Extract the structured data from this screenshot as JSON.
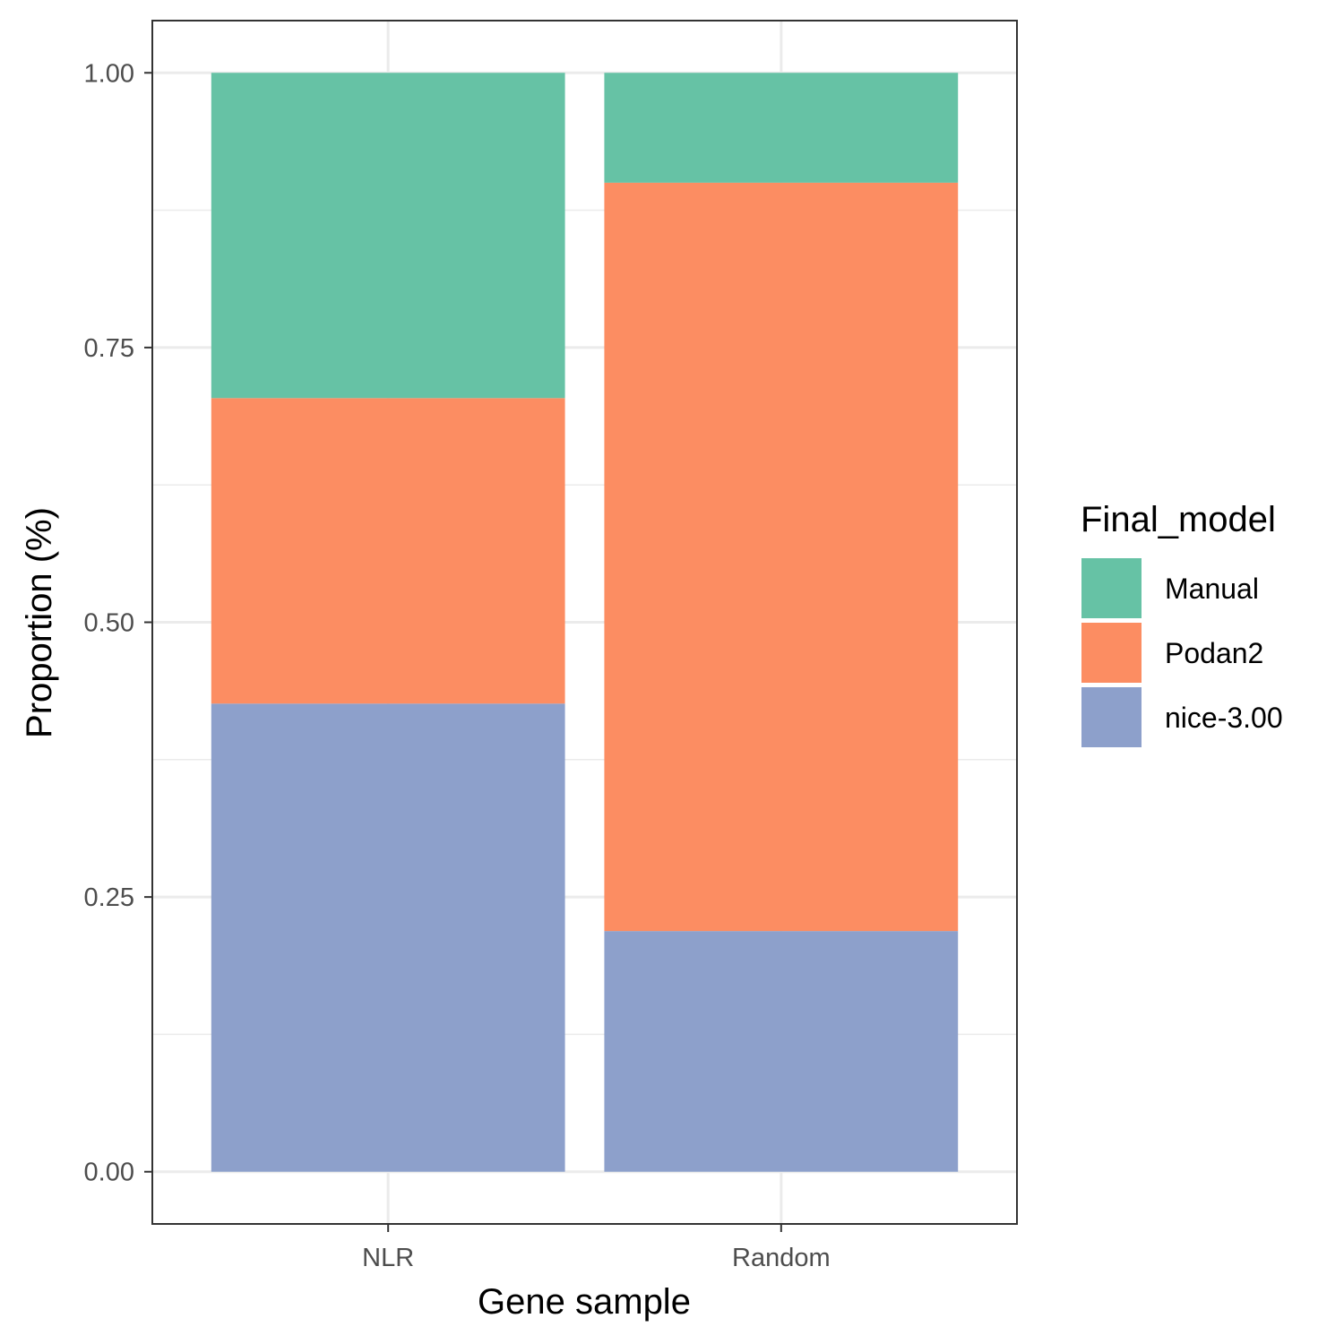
{
  "chart_data": {
    "type": "bar",
    "stacked": true,
    "categories": [
      "NLR",
      "Random"
    ],
    "series": [
      {
        "name": "nice-3.00",
        "color": "#8DA0CB",
        "values": [
          0.426,
          0.219
        ]
      },
      {
        "name": "Podan2",
        "color": "#FC8D62",
        "values": [
          0.278,
          0.681
        ]
      },
      {
        "name": "Manual",
        "color": "#66C2A5",
        "values": [
          0.296,
          0.1
        ]
      }
    ],
    "title": "",
    "xlabel": "Gene sample",
    "ylabel": "Proportion (%)",
    "ylim": [
      -0.0475,
      1.0475
    ],
    "yticks": [
      0,
      0.25,
      0.5,
      0.75,
      1.0
    ],
    "ytick_labels": [
      "0.00",
      "0.25",
      "0.50",
      "0.75",
      "1.00"
    ],
    "grid": true,
    "legend": {
      "title": "Final_model",
      "position": "right",
      "items": [
        "Manual",
        "Podan2",
        "nice-3.00"
      ]
    }
  }
}
